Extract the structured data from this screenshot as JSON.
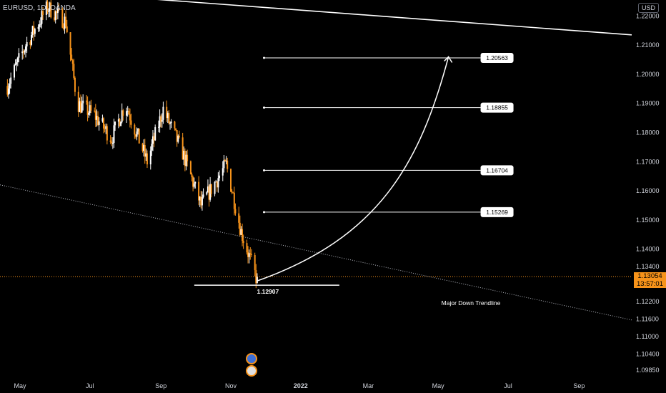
{
  "header": {
    "symbol": "EURUSD, 1D, OANDA",
    "currency": "USD"
  },
  "price_axis": {
    "ticks": [
      "1.22000",
      "1.21000",
      "1.20000",
      "1.19000",
      "1.18000",
      "1.17000",
      "1.16000",
      "1.15000",
      "1.14000",
      "1.13400",
      "1.12200",
      "1.11600",
      "1.11000",
      "1.10400",
      "1.09850"
    ]
  },
  "time_axis": {
    "ticks": [
      "May",
      "Jul",
      "Sep",
      "Nov",
      "2022",
      "Mar",
      "May",
      "Jul",
      "Sep"
    ]
  },
  "current_price": {
    "value": "1.13054",
    "countdown": "13:57:01",
    "color": "#f7931a"
  },
  "colors": {
    "up": "#ffffff",
    "down": "#f7931a",
    "background": "#000000"
  },
  "annotations": {
    "low_label": "1.12907",
    "trendline_label": "Major Down Trendline",
    "targets": [
      "1.20563",
      "1.18855",
      "1.16704",
      "1.15269"
    ]
  },
  "chart_data": {
    "type": "candlestick",
    "instrument": "EURUSD",
    "timeframe": "1D",
    "path_anchors": [
      {
        "date": "2021-04-20",
        "price": 1.196
      },
      {
        "date": "2021-05-06",
        "price": 1.21
      },
      {
        "date": "2021-05-25",
        "price": 1.223
      },
      {
        "date": "2021-06-10",
        "price": 1.218
      },
      {
        "date": "2021-06-20",
        "price": 1.19
      },
      {
        "date": "2021-07-05",
        "price": 1.186
      },
      {
        "date": "2021-07-20",
        "price": 1.178
      },
      {
        "date": "2021-08-01",
        "price": 1.19
      },
      {
        "date": "2021-08-20",
        "price": 1.17
      },
      {
        "date": "2021-09-03",
        "price": 1.188
      },
      {
        "date": "2021-09-20",
        "price": 1.173
      },
      {
        "date": "2021-10-06",
        "price": 1.155
      },
      {
        "date": "2021-10-28",
        "price": 1.169
      },
      {
        "date": "2021-11-05",
        "price": 1.155
      },
      {
        "date": "2021-11-10",
        "price": 1.146
      },
      {
        "date": "2021-11-24",
        "price": 1.12907
      }
    ],
    "last_close": 1.13054,
    "swing_low": 1.12907,
    "target_levels": [
      1.20563,
      1.18855,
      1.16704,
      1.15269
    ],
    "trendlines": [
      {
        "name": "upper",
        "style": "solid",
        "points": [
          {
            "date": "2021-03-01",
            "price": 1.231
          },
          {
            "date": "2022-10-01",
            "price": 1.214
          }
        ]
      },
      {
        "name": "Major Down Trendline",
        "style": "dotted",
        "points": [
          {
            "date": "2021-04-20",
            "price": 1.1615
          },
          {
            "date": "2022-10-01",
            "price": 1.117
          }
        ]
      }
    ],
    "projection": {
      "from": {
        "date": "2021-11-24",
        "price": 1.12907
      },
      "to": {
        "date": "2022-05-10",
        "price": 1.206
      }
    },
    "ylim": [
      1.0955,
      1.2255
    ]
  }
}
